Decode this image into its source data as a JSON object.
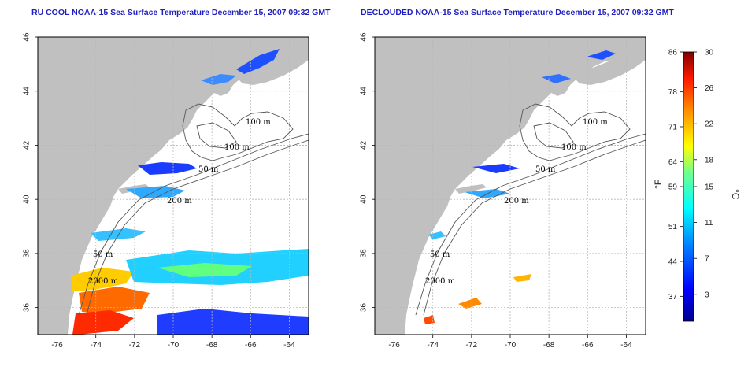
{
  "panels": [
    {
      "id": "left",
      "title": "RU COOL NOAA-15 Sea Surface Temperature December 15, 2007 09:32 GMT",
      "contour_labels": [
        "100 m",
        "100 m",
        "50 m",
        "200 m",
        "50 m",
        "2000 m"
      ]
    },
    {
      "id": "right",
      "title": "DECLOUDED NOAA-15 Sea Surface Temperature December 15, 2007 09:32 GMT",
      "contour_labels": [
        "100 m",
        "100 m",
        "50 m",
        "200 m",
        "50 m",
        "2000 m"
      ]
    }
  ],
  "axes": {
    "lon_ticks": [
      "-76",
      "-74",
      "-72",
      "-70",
      "-68",
      "-66",
      "-64"
    ],
    "lat_ticks": [
      "36",
      "38",
      "40",
      "42",
      "44",
      "46"
    ],
    "lon_range": [
      -77,
      -63
    ],
    "lat_range": [
      35,
      46
    ],
    "grid": true
  },
  "colorbar": {
    "fahrenheit_ticks": [
      "86",
      "78",
      "71",
      "64",
      "59",
      "51",
      "44",
      "37"
    ],
    "celsius_ticks": [
      "30",
      "26",
      "22",
      "18",
      "15",
      "11",
      "7",
      "3"
    ],
    "fahrenheit_unit": "°F",
    "celsius_unit": "°C",
    "range_c": [
      0,
      30
    ]
  },
  "colors": {
    "land": "#c0c0c0",
    "ocean": "#ffffff",
    "title": "#1f1fbf",
    "grid": "#b8b8b8"
  }
}
